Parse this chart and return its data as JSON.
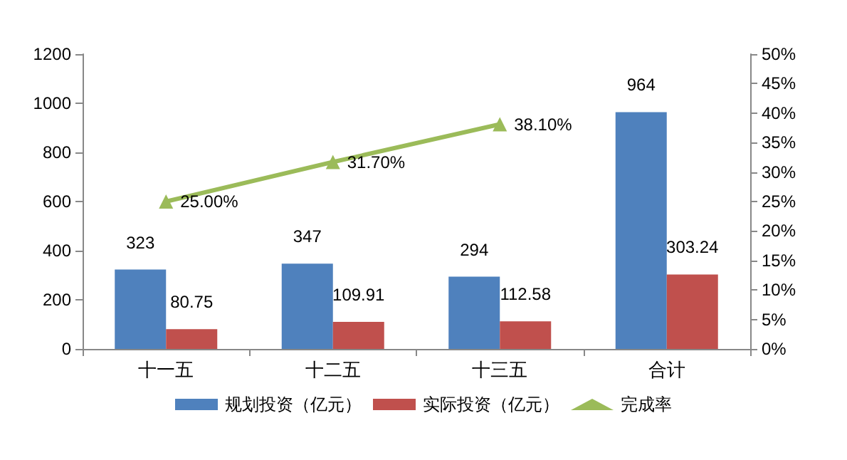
{
  "chart_data": {
    "type": "bar",
    "categories": [
      "十一五",
      "十二五",
      "十三五",
      "合计"
    ],
    "series": [
      {
        "name": "规划投资（亿元）",
        "color": "#4f81bd",
        "values": [
          323,
          347,
          294,
          964
        ],
        "value_labels": [
          "323",
          "347",
          "294",
          "964"
        ]
      },
      {
        "name": "实际投资（亿元）",
        "color": "#c0504d",
        "values": [
          80.75,
          109.91,
          112.58,
          303.24
        ],
        "value_labels": [
          "80.75",
          "109.91",
          "112.58",
          "303.24"
        ]
      },
      {
        "name": "完成率",
        "type": "line",
        "axis": "y2",
        "color": "#9bbb59",
        "values": [
          25.0,
          31.7,
          38.1,
          null
        ],
        "value_labels": [
          "25.00%",
          "31.70%",
          "38.10%",
          null
        ],
        "marker": "triangle"
      }
    ],
    "ylim": [
      0,
      1200
    ],
    "yticks": [
      0,
      200,
      400,
      600,
      800,
      1000,
      1200
    ],
    "y2lim": [
      0,
      50
    ],
    "y2ticks": [
      {
        "value": 0,
        "label": "0%"
      },
      {
        "value": 5,
        "label": "5%"
      },
      {
        "value": 10,
        "label": "10%"
      },
      {
        "value": 15,
        "label": "15%"
      },
      {
        "value": 20,
        "label": "20%"
      },
      {
        "value": 25,
        "label": "25%"
      },
      {
        "value": 30,
        "label": "30%"
      },
      {
        "value": 35,
        "label": "35%"
      },
      {
        "value": 40,
        "label": "40%"
      },
      {
        "value": 45,
        "label": "45%"
      },
      {
        "value": 50,
        "label": "50%"
      }
    ],
    "grid": false,
    "legend": "bottom"
  }
}
